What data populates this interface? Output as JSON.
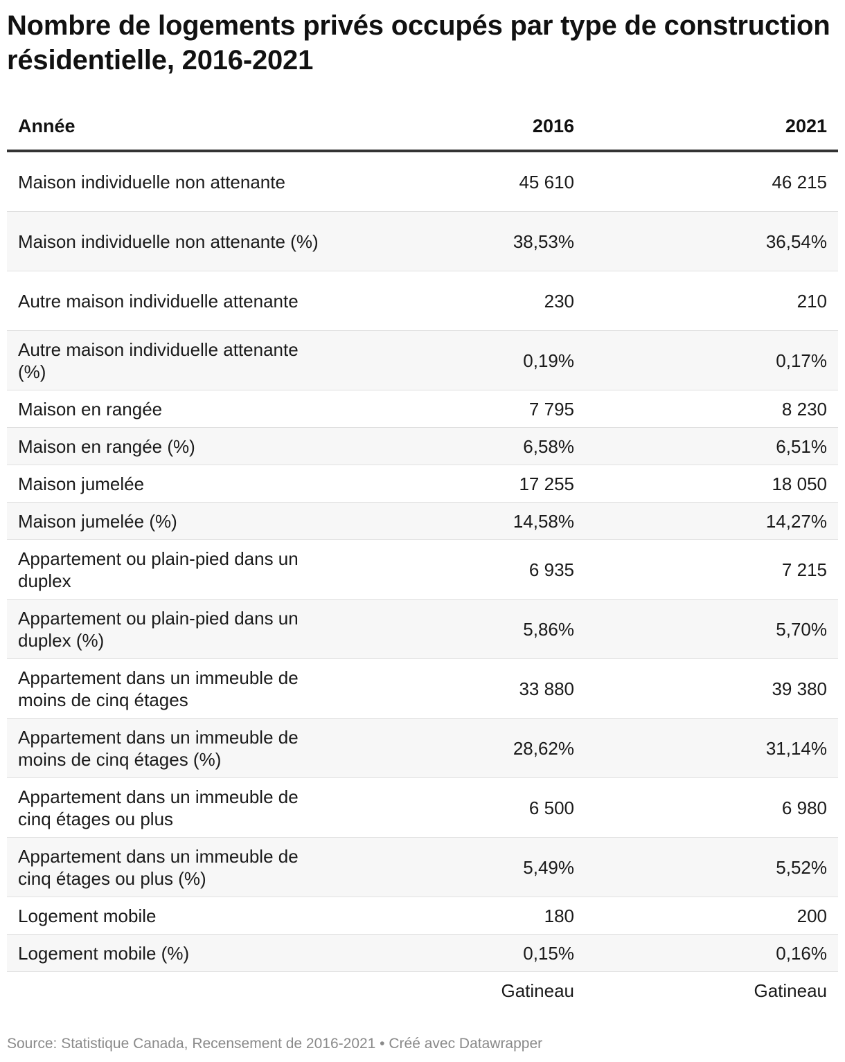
{
  "chart_data": {
    "type": "table",
    "title": "Nombre de logements privés occupés par type de construction résidentielle, 2016-2021",
    "columns": [
      "Année",
      "2016",
      "2021"
    ],
    "rows": [
      {
        "label": "Maison individuelle non attenante",
        "v2016": "45 610",
        "v2021": "46 215"
      },
      {
        "label": "Maison individuelle non attenante (%)",
        "v2016": "38,53%",
        "v2021": "36,54%"
      },
      {
        "label": "Autre maison individuelle attenante",
        "v2016": "230",
        "v2021": "210"
      },
      {
        "label": "Autre maison individuelle attenante (%)",
        "v2016": "0,19%",
        "v2021": "0,17%"
      },
      {
        "label": "Maison en rangée",
        "v2016": "7 795",
        "v2021": "8 230"
      },
      {
        "label": "Maison en rangée (%)",
        "v2016": "6,58%",
        "v2021": "6,51%"
      },
      {
        "label": "Maison jumelée",
        "v2016": "17 255",
        "v2021": "18 050"
      },
      {
        "label": "Maison jumelée (%)",
        "v2016": "14,58%",
        "v2021": "14,27%"
      },
      {
        "label": "Appartement ou plain-pied dans un duplex",
        "v2016": "6 935",
        "v2021": "7 215"
      },
      {
        "label": "Appartement ou plain-pied dans un duplex (%)",
        "v2016": "5,86%",
        "v2021": "5,70%"
      },
      {
        "label": "Appartement dans un immeuble de moins de cinq étages",
        "v2016": "33 880",
        "v2021": "39 380"
      },
      {
        "label": "Appartement dans un immeuble de moins de cinq étages (%)",
        "v2016": "28,62%",
        "v2021": "31,14%"
      },
      {
        "label": "Appartement dans un immeuble de cinq étages ou plus",
        "v2016": "6 500",
        "v2021": "6 980"
      },
      {
        "label": "Appartement dans un immeuble de cinq étages ou plus (%)",
        "v2016": "5,49%",
        "v2021": "5,52%"
      },
      {
        "label": "Logement mobile",
        "v2016": "180",
        "v2021": "200"
      },
      {
        "label": "Logement mobile (%)",
        "v2016": "0,15%",
        "v2021": "0,16%"
      }
    ],
    "footer_row": {
      "v2016": "Gatineau",
      "v2021": "Gatineau"
    },
    "source": "Source: Statistique Canada, Recensement de 2016-2021 • Créé avec Datawrapper"
  }
}
